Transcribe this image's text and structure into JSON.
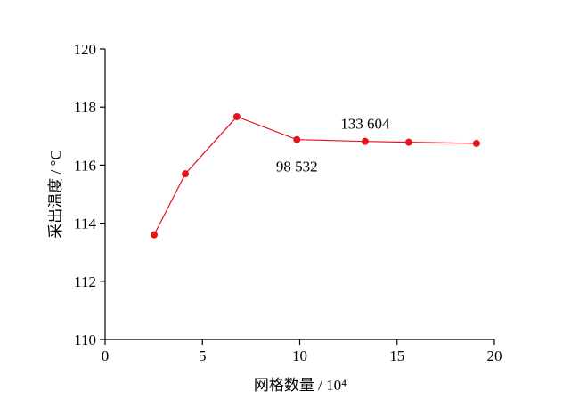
{
  "chart_data": {
    "type": "line",
    "x_label": "网格数量 / 10⁴",
    "y_label": "采出温度 / °C",
    "x": [
      2.52,
      4.12,
      6.77,
      9.8532,
      13.3604,
      15.6,
      19.08
    ],
    "series": [
      {
        "name": null,
        "color": "#e8141c",
        "values": [
          113.6,
          115.7,
          117.67,
          116.88,
          116.82,
          116.79,
          116.75
        ]
      }
    ],
    "xlim": [
      0,
      20
    ],
    "xticks": [
      0,
      5,
      10,
      15,
      20
    ],
    "ylim": [
      110,
      120
    ],
    "yticks": [
      110,
      112,
      114,
      116,
      118,
      120
    ],
    "annotations": [
      {
        "text": "98 532",
        "x": 9.8532,
        "y": 116.88
      },
      {
        "text": "133 604",
        "x": 13.3604,
        "y": 116.82
      }
    ]
  }
}
